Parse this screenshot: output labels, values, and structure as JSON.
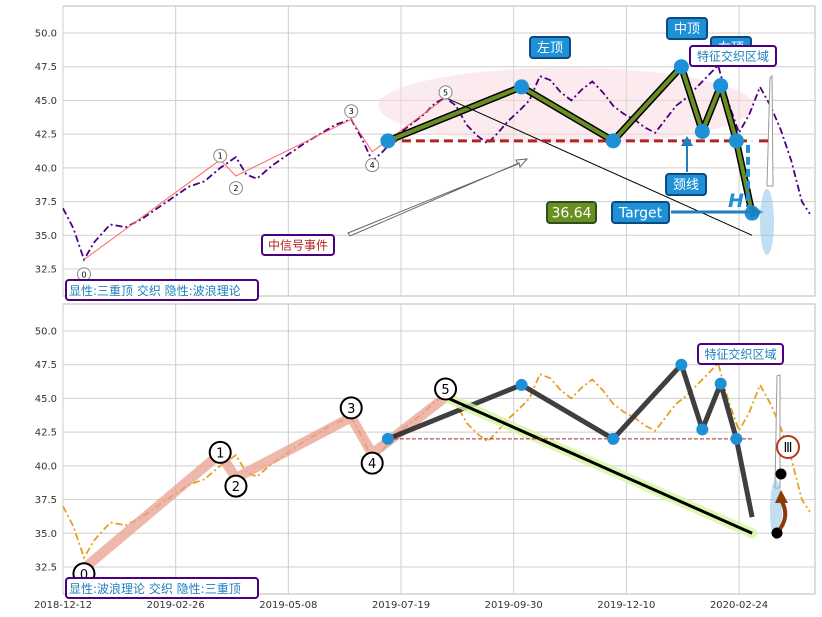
{
  "chart_data": [
    {
      "type": "line",
      "panel": "top",
      "ylim": [
        30.5,
        52
      ],
      "yticks": [
        32.5,
        35.0,
        37.5,
        40.0,
        42.5,
        45.0,
        47.5,
        50.0
      ],
      "grid": true,
      "series": [
        {
          "style": "dashdot",
          "color": "#4b0082",
          "points": [
            [
              0,
              37.0
            ],
            [
              4,
              35.5
            ],
            [
              8,
              33.2
            ],
            [
              12,
              34.5
            ],
            [
              18,
              35.8
            ],
            [
              24,
              35.6
            ],
            [
              30,
              36.2
            ],
            [
              36,
              37.0
            ],
            [
              42,
              37.8
            ],
            [
              48,
              38.6
            ],
            [
              54,
              39.0
            ],
            [
              60,
              40.0
            ],
            [
              66,
              40.8
            ],
            [
              70,
              39.5
            ],
            [
              74,
              39.2
            ],
            [
              80,
              40.2
            ],
            [
              86,
              41.0
            ],
            [
              92,
              41.8
            ],
            [
              98,
              42.5
            ],
            [
              104,
              43.2
            ],
            [
              110,
              43.6
            ],
            [
              114,
              42.2
            ],
            [
              118,
              40.5
            ],
            [
              122,
              41.2
            ],
            [
              128,
              42.5
            ],
            [
              134,
              43.4
            ],
            [
              138,
              44.0
            ],
            [
              142,
              44.8
            ],
            [
              146,
              45.2
            ],
            [
              150,
              44.6
            ],
            [
              154,
              43.2
            ],
            [
              158,
              42.4
            ],
            [
              162,
              41.8
            ],
            [
              166,
              42.6
            ],
            [
              170,
              43.5
            ],
            [
              174,
              44.2
            ],
            [
              178,
              45.0
            ],
            [
              182,
              46.8
            ],
            [
              186,
              46.5
            ],
            [
              190,
              45.6
            ],
            [
              194,
              45.0
            ],
            [
              198,
              45.8
            ],
            [
              202,
              46.4
            ],
            [
              206,
              45.6
            ],
            [
              210,
              44.6
            ],
            [
              214,
              44.0
            ],
            [
              218,
              43.6
            ],
            [
              222,
              43.0
            ],
            [
              226,
              42.6
            ],
            [
              230,
              43.6
            ],
            [
              234,
              44.6
            ],
            [
              238,
              45.2
            ],
            [
              242,
              46.0
            ],
            [
              246,
              46.8
            ],
            [
              250,
              47.6
            ],
            [
              254,
              44.8
            ],
            [
              258,
              42.6
            ],
            [
              262,
              44.0
            ],
            [
              266,
              46.0
            ],
            [
              270,
              44.6
            ],
            [
              274,
              42.8
            ],
            [
              278,
              40.5
            ],
            [
              282,
              37.5
            ],
            [
              285,
              36.6
            ]
          ]
        },
        {
          "style": "solid",
          "color": "#ff6666",
          "width": 1,
          "points": [
            [
              8,
              33.2
            ],
            [
              60,
              40.6
            ],
            [
              66,
              39.4
            ],
            [
              110,
              43.6
            ],
            [
              118,
              41.2
            ],
            [
              146,
              45.2
            ]
          ]
        },
        {
          "style": "thick",
          "color": "#6b8e23",
          "points": [
            [
              124,
              42.0
            ],
            [
              175,
              46.0
            ],
            [
              210,
              42.0
            ],
            [
              236,
              47.5
            ],
            [
              244,
              42.7
            ],
            [
              251,
              46.1
            ],
            [
              257,
              42.0
            ],
            [
              263,
              36.64
            ]
          ]
        },
        {
          "style": "solid",
          "color": "#000000",
          "width": 1,
          "points": [
            [
              146,
              45.2
            ],
            [
              263,
              35.0
            ]
          ]
        }
      ],
      "neckline": {
        "from": 124,
        "to": 263,
        "y": 42.0,
        "color": "#b22222"
      },
      "points_markers": [
        [
          124,
          42.0
        ],
        [
          175,
          46.0
        ],
        [
          210,
          42.0
        ],
        [
          236,
          47.5
        ],
        [
          244,
          42.7
        ],
        [
          251,
          46.1
        ],
        [
          257,
          42.0
        ],
        [
          263,
          36.64
        ]
      ],
      "wave_labels": [
        {
          "label": "0",
          "x": 8,
          "y": 32.1
        },
        {
          "label": "1",
          "x": 60,
          "y": 40.9
        },
        {
          "label": "2",
          "x": 66,
          "y": 38.5
        },
        {
          "label": "3",
          "x": 110,
          "y": 44.2
        },
        {
          "label": "4",
          "x": 118,
          "y": 40.2
        },
        {
          "label": "5",
          "x": 146,
          "y": 45.6
        }
      ],
      "annotations": {
        "left_top": "左顶",
        "mid_top": "中顶",
        "right_top": "右顶",
        "feature_zone": "特征交织区域",
        "neckline": "颈线",
        "target": "Target",
        "target_value": "36.64",
        "height_mark": "H",
        "signal_event": "中信号事件",
        "pattern_label": "显性:三重顶 交织 隐性:波浪理论"
      }
    },
    {
      "type": "line",
      "panel": "bottom",
      "ylim": [
        30.5,
        52
      ],
      "yticks": [
        32.5,
        35.0,
        37.5,
        40.0,
        42.5,
        45.0,
        47.5,
        50.0
      ],
      "grid": true,
      "x_tick_labels": [
        "2018-12-12",
        "2019-02-26",
        "2019-05-08",
        "2019-07-19",
        "2019-09-30",
        "2019-12-10",
        "2020-02-24"
      ],
      "series": [
        {
          "style": "dashdot",
          "color": "#e6a020",
          "points": [
            [
              0,
              37.0
            ],
            [
              4,
              35.5
            ],
            [
              8,
              33.2
            ],
            [
              12,
              34.5
            ],
            [
              18,
              35.8
            ],
            [
              24,
              35.6
            ],
            [
              30,
              36.2
            ],
            [
              36,
              37.0
            ],
            [
              42,
              37.8
            ],
            [
              48,
              38.6
            ],
            [
              54,
              39.0
            ],
            [
              60,
              40.0
            ],
            [
              66,
              40.8
            ],
            [
              70,
              39.5
            ],
            [
              74,
              39.2
            ],
            [
              80,
              40.2
            ],
            [
              86,
              41.0
            ],
            [
              92,
              41.8
            ],
            [
              98,
              42.5
            ],
            [
              104,
              43.2
            ],
            [
              110,
              43.6
            ],
            [
              114,
              42.2
            ],
            [
              118,
              40.5
            ],
            [
              122,
              41.2
            ],
            [
              128,
              42.5
            ],
            [
              134,
              43.4
            ],
            [
              138,
              44.0
            ],
            [
              142,
              44.8
            ],
            [
              146,
              45.2
            ],
            [
              150,
              44.6
            ],
            [
              154,
              43.2
            ],
            [
              158,
              42.4
            ],
            [
              162,
              41.8
            ],
            [
              166,
              42.6
            ],
            [
              170,
              43.5
            ],
            [
              174,
              44.2
            ],
            [
              178,
              45.0
            ],
            [
              182,
              46.8
            ],
            [
              186,
              46.5
            ],
            [
              190,
              45.6
            ],
            [
              194,
              45.0
            ],
            [
              198,
              45.8
            ],
            [
              202,
              46.4
            ],
            [
              206,
              45.6
            ],
            [
              210,
              44.6
            ],
            [
              214,
              44.0
            ],
            [
              218,
              43.6
            ],
            [
              222,
              43.0
            ],
            [
              226,
              42.6
            ],
            [
              230,
              43.6
            ],
            [
              234,
              44.6
            ],
            [
              238,
              45.2
            ],
            [
              242,
              46.0
            ],
            [
              246,
              46.8
            ],
            [
              250,
              47.6
            ],
            [
              254,
              44.8
            ],
            [
              258,
              42.6
            ],
            [
              262,
              44.0
            ],
            [
              266,
              46.0
            ],
            [
              270,
              44.6
            ],
            [
              274,
              42.8
            ],
            [
              278,
              40.5
            ],
            [
              282,
              37.5
            ],
            [
              285,
              36.6
            ]
          ]
        },
        {
          "style": "wave",
          "color": "#e8a090",
          "points": [
            [
              8,
              32.4
            ],
            [
              60,
              40.9
            ],
            [
              66,
              39.1
            ],
            [
              110,
              43.6
            ],
            [
              118,
              40.9
            ],
            [
              146,
              45.1
            ]
          ]
        },
        {
          "style": "thick",
          "color": "#2a2a2a",
          "points": [
            [
              124,
              42.0
            ],
            [
              175,
              46.0
            ],
            [
              210,
              42.0
            ],
            [
              236,
              47.5
            ],
            [
              244,
              42.7
            ],
            [
              251,
              46.1
            ],
            [
              257,
              42.0
            ],
            [
              263,
              36.2
            ]
          ]
        },
        {
          "style": "thick",
          "color": "#000000",
          "points": [
            [
              146,
              45.1
            ],
            [
              263,
              35.0
            ]
          ]
        }
      ],
      "neckline": {
        "from": 124,
        "to": 263,
        "y": 42.0,
        "color": "#b22222"
      },
      "points_markers": [
        [
          124,
          42.0
        ],
        [
          175,
          46.0
        ],
        [
          210,
          42.0
        ],
        [
          236,
          47.5
        ],
        [
          244,
          42.7
        ],
        [
          251,
          46.1
        ],
        [
          257,
          42.0
        ]
      ],
      "wave_labels": [
        {
          "label": "0",
          "x": 8,
          "y": 32.0
        },
        {
          "label": "1",
          "x": 60,
          "y": 41.0
        },
        {
          "label": "2",
          "x": 66,
          "y": 38.5
        },
        {
          "label": "3",
          "x": 110,
          "y": 44.3
        },
        {
          "label": "4",
          "x": 118,
          "y": 40.2
        },
        {
          "label": "5",
          "x": 146,
          "y": 45.7
        }
      ],
      "annotations": {
        "feature_zone": "特征交织区域",
        "roman": "Ⅲ",
        "pattern_label": "显性:波浪理论 交织 隐性:三重顶"
      }
    }
  ]
}
